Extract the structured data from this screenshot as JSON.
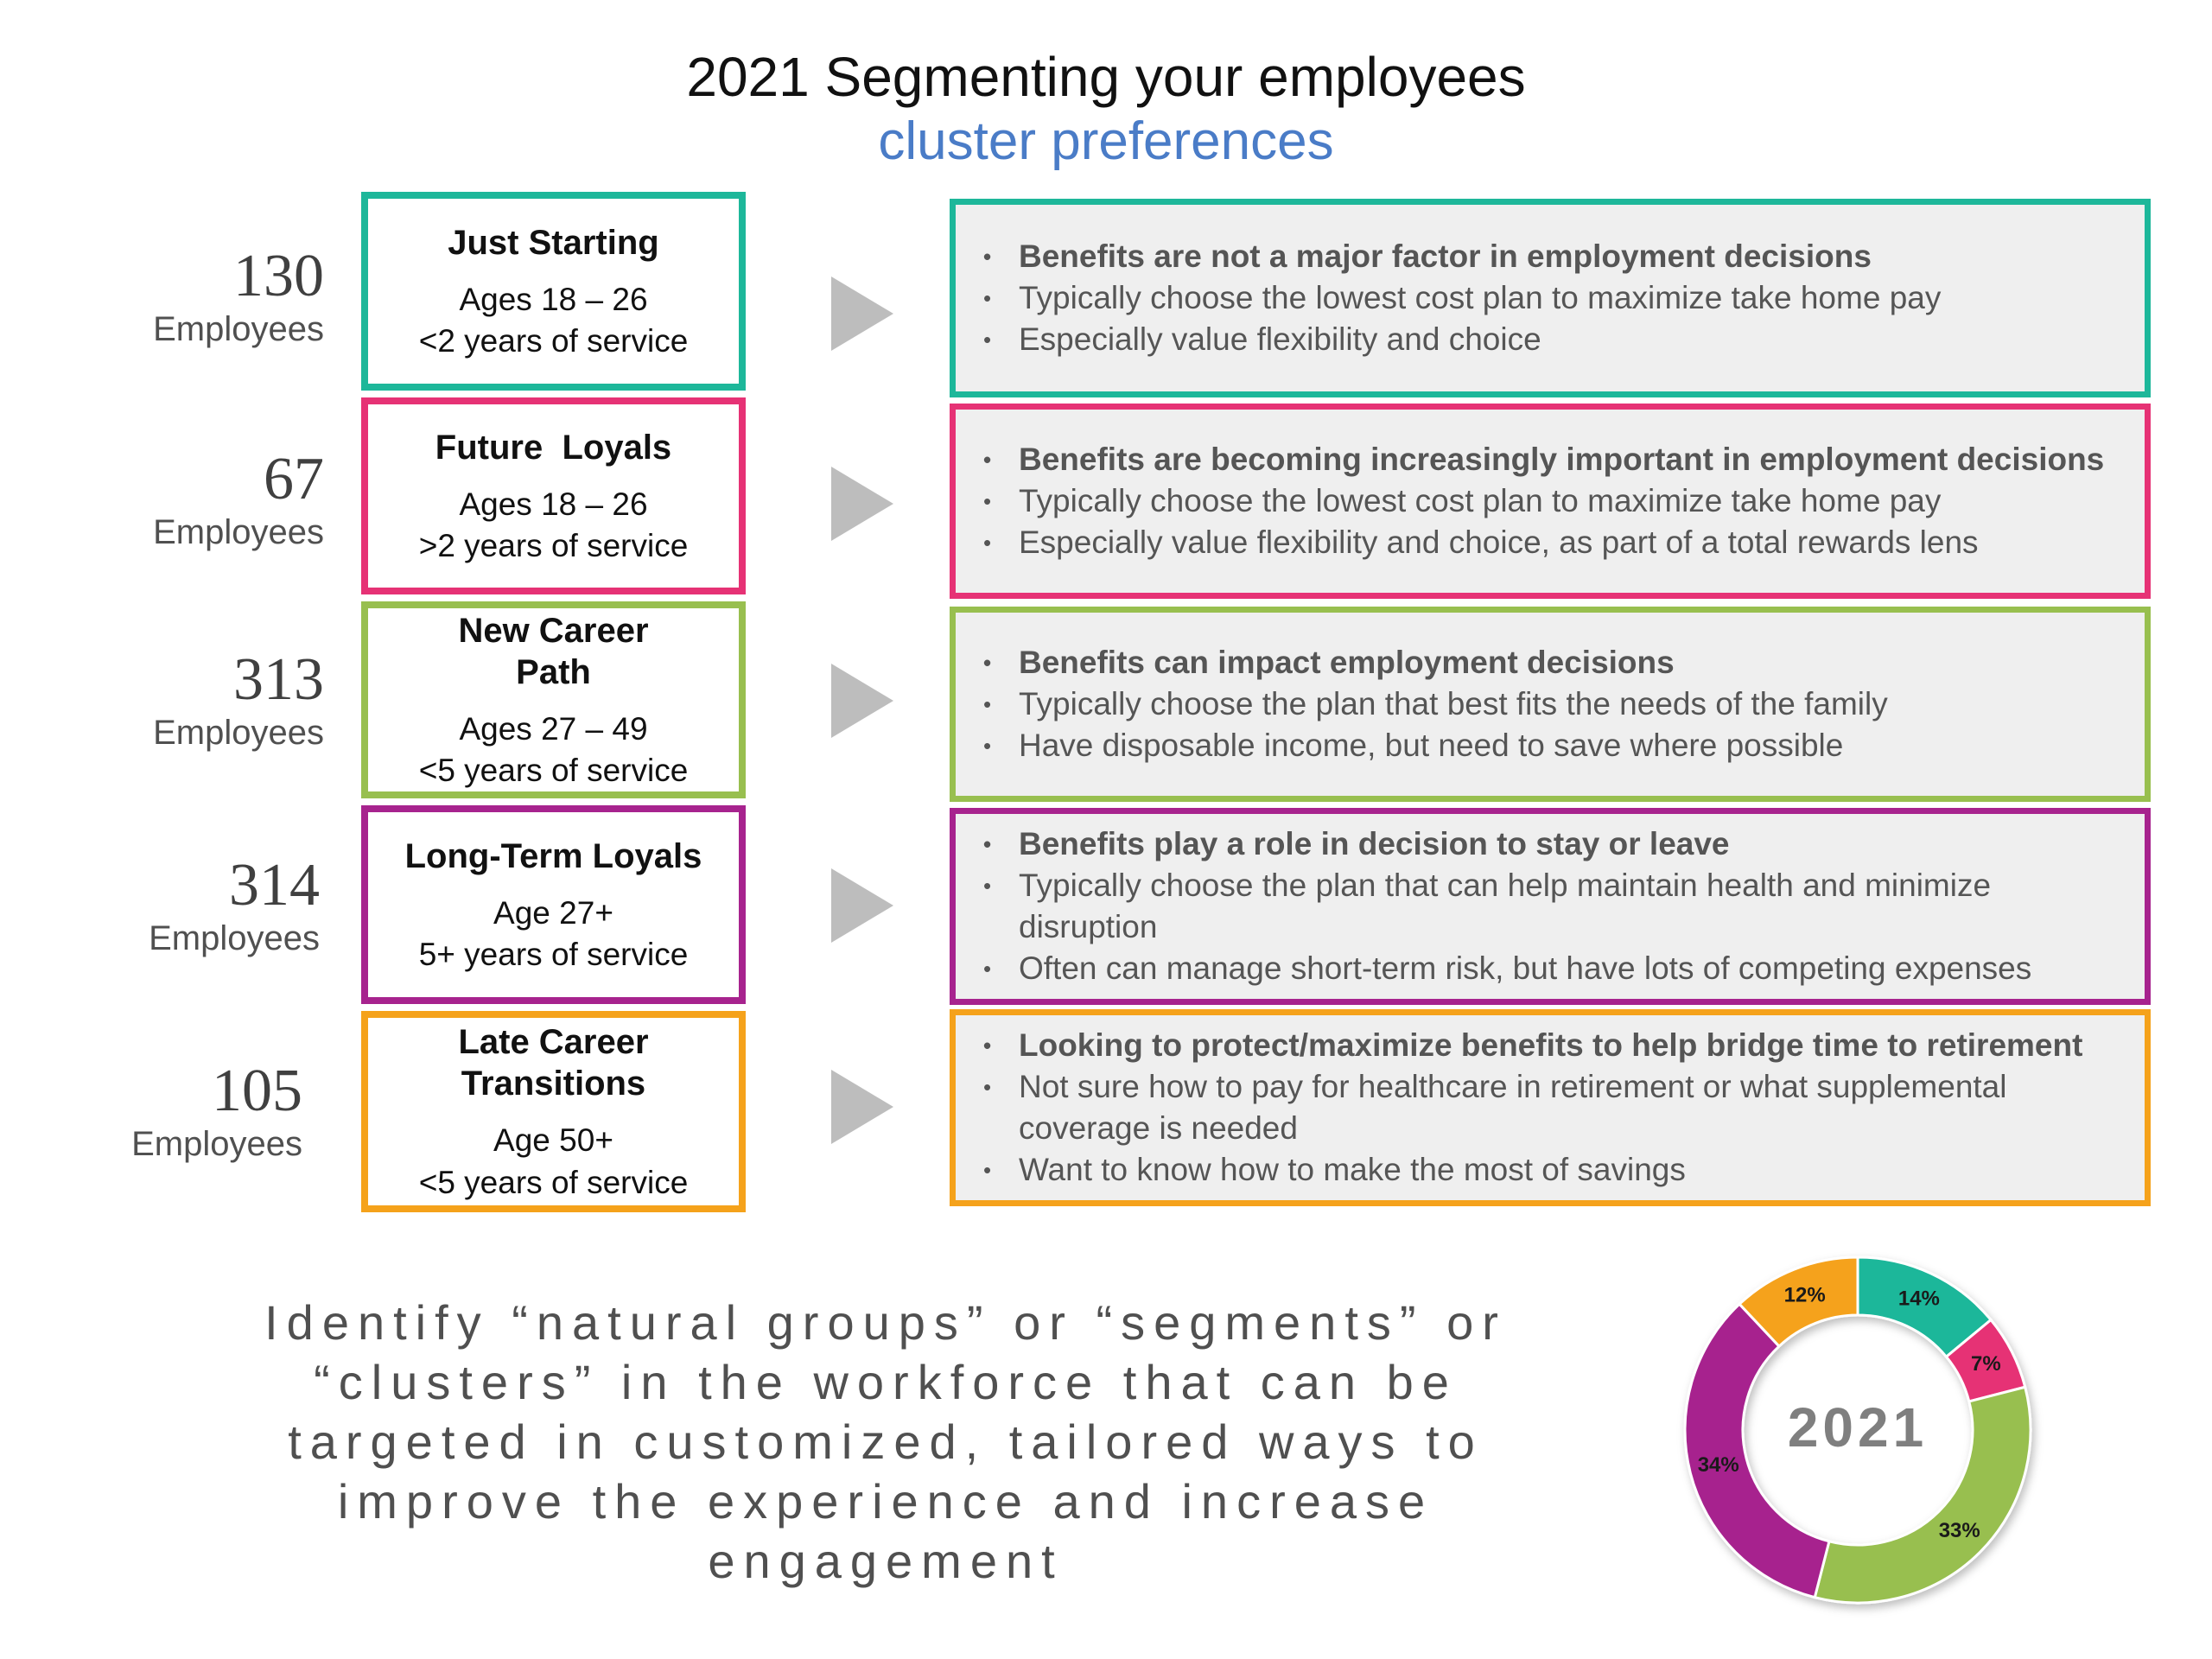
{
  "title": "2021 Segmenting your employees",
  "subtitle": "cluster preferences",
  "segments": [
    {
      "count": "130",
      "count_label": "Employees",
      "name": "Just Starting",
      "ages": "Ages 18 – 26",
      "service": "<2 years of service",
      "color": "#1db79a",
      "bullets": [
        "Benefits are not a major factor in employment decisions",
        "Typically choose the lowest cost plan to maximize take home pay",
        "Especially value flexibility and choice"
      ]
    },
    {
      "count": "67",
      "count_label": "Employees",
      "name": "Future  Loyals",
      "ages": "Ages 18 – 26",
      "service": ">2 years of service",
      "color": "#e63275",
      "bullets": [
        "Benefits are becoming increasingly important in employment decisions",
        "Typically choose the lowest cost plan to maximize take home pay",
        "Especially value flexibility and choice, as part of a total rewards lens"
      ]
    },
    {
      "count": "313",
      "count_label": "Employees",
      "name": "New Career Path",
      "ages": "Ages 27 – 49",
      "service": "<5 years of service",
      "color": "#98bf4f",
      "bullets": [
        "Benefits can impact employment decisions",
        "Typically choose the plan that best fits the needs of the family",
        "Have disposable income, but need to save where possible"
      ]
    },
    {
      "count": "314",
      "count_label": "Employees",
      "name": "Long-Term Loyals",
      "ages": "Age 27+",
      "service": "5+ years of service",
      "color": "#a7238e",
      "bullets": [
        "Benefits play a role in decision to stay or leave",
        "Typically choose the plan that can help maintain health and minimize disruption",
        "Often can manage short-term risk, but have lots of competing expenses"
      ]
    },
    {
      "count": "105",
      "count_label": "Employees",
      "name": "Late Career Transitions",
      "ages": "Age 50+",
      "service": "<5 years of service",
      "color": "#f5a21b",
      "bullets": [
        "Looking to protect/maximize benefits to help bridge time to retirement",
        "Not sure how to pay for healthcare in retirement or what supplemental coverage is needed",
        "Want to know how to make the most of savings"
      ]
    }
  ],
  "tagline": "Identify “natural groups” or “segments” or “clusters” in the workforce that can be targeted in customized, tailored ways to improve the experience and increase engagement",
  "chart_data": {
    "type": "pie",
    "center_label": "2021",
    "categories": [
      "Just Starting",
      "Future Loyals",
      "New Career Path",
      "Long-Term Loyals",
      "Late Career Transitions"
    ],
    "values": [
      14,
      7,
      33,
      34,
      12
    ],
    "labels": [
      "14%",
      "7%",
      "33%",
      "34%",
      "12%"
    ],
    "colors": [
      "#1db79a",
      "#e63275",
      "#98bf4f",
      "#a7238e",
      "#f5a21b"
    ]
  }
}
